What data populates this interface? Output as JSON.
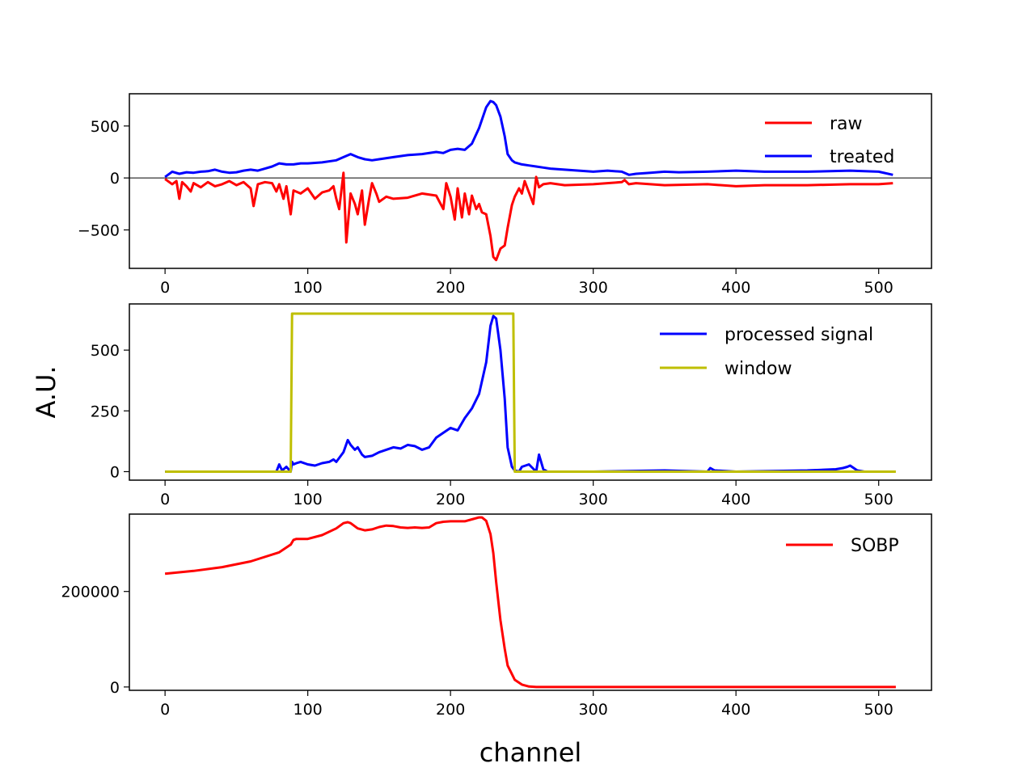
{
  "figure": {
    "ylabel": "A.U.",
    "xlabel": "channel"
  },
  "chart_data": [
    {
      "type": "line",
      "xlim": [
        -25,
        537
      ],
      "ylim": [
        -870,
        810
      ],
      "xticks": [
        0,
        100,
        200,
        300,
        400,
        500
      ],
      "yticks": [
        -500,
        0,
        500
      ],
      "xtick_labels": [
        "0",
        "100",
        "200",
        "300",
        "400",
        "500"
      ],
      "ytick_labels": [
        "−500",
        "0",
        "500"
      ],
      "hline": 0,
      "legend_loc": "upper right",
      "series": [
        {
          "name": "raw",
          "color": "#ff0000",
          "x": [
            0,
            5,
            8,
            10,
            12,
            15,
            18,
            20,
            25,
            30,
            35,
            40,
            45,
            50,
            55,
            60,
            62,
            65,
            70,
            75,
            78,
            80,
            83,
            85,
            88,
            90,
            95,
            100,
            105,
            110,
            115,
            118,
            120,
            122,
            125,
            127,
            130,
            133,
            135,
            138,
            140,
            143,
            145,
            148,
            150,
            155,
            160,
            170,
            180,
            190,
            195,
            197,
            200,
            203,
            205,
            208,
            210,
            213,
            215,
            218,
            220,
            222,
            225,
            228,
            230,
            232,
            235,
            238,
            240,
            243,
            245,
            248,
            250,
            252,
            255,
            258,
            260,
            262,
            265,
            270,
            280,
            300,
            320,
            322,
            325,
            330,
            350,
            380,
            400,
            420,
            450,
            480,
            500,
            510
          ],
          "y": [
            -10,
            -60,
            -30,
            -200,
            -40,
            -80,
            -130,
            -50,
            -90,
            -40,
            -80,
            -60,
            -30,
            -70,
            -40,
            -100,
            -270,
            -60,
            -40,
            -50,
            -130,
            -60,
            -200,
            -80,
            -350,
            -120,
            -150,
            -100,
            -200,
            -140,
            -120,
            -80,
            -200,
            -300,
            50,
            -620,
            -150,
            -250,
            -350,
            -120,
            -450,
            -200,
            -50,
            -150,
            -230,
            -180,
            -200,
            -190,
            -150,
            -170,
            -300,
            -50,
            -180,
            -400,
            -100,
            -380,
            -150,
            -350,
            -170,
            -300,
            -250,
            -330,
            -350,
            -560,
            -760,
            -790,
            -680,
            -650,
            -480,
            -260,
            -180,
            -100,
            -150,
            -30,
            -140,
            -250,
            10,
            -90,
            -60,
            -50,
            -70,
            -60,
            -40,
            -20,
            -60,
            -50,
            -70,
            -60,
            -80,
            -70,
            -70,
            -60,
            -60,
            -50
          ]
        },
        {
          "name": "treated",
          "color": "#0000ff",
          "x": [
            0,
            5,
            10,
            15,
            20,
            25,
            30,
            35,
            40,
            45,
            50,
            55,
            60,
            65,
            70,
            75,
            80,
            85,
            90,
            95,
            100,
            110,
            120,
            125,
            130,
            135,
            140,
            145,
            150,
            160,
            170,
            180,
            190,
            195,
            200,
            205,
            210,
            215,
            220,
            225,
            228,
            230,
            232,
            235,
            238,
            240,
            243,
            245,
            250,
            255,
            260,
            265,
            270,
            280,
            290,
            300,
            310,
            320,
            325,
            330,
            340,
            350,
            360,
            380,
            400,
            420,
            450,
            480,
            500,
            510
          ],
          "y": [
            10,
            60,
            40,
            55,
            50,
            60,
            65,
            80,
            60,
            50,
            55,
            70,
            80,
            70,
            90,
            110,
            140,
            130,
            130,
            140,
            140,
            150,
            170,
            200,
            230,
            200,
            180,
            170,
            180,
            200,
            220,
            230,
            250,
            240,
            270,
            280,
            270,
            330,
            480,
            680,
            740,
            730,
            700,
            590,
            400,
            230,
            170,
            150,
            130,
            120,
            110,
            100,
            90,
            80,
            70,
            60,
            70,
            60,
            30,
            40,
            50,
            60,
            55,
            60,
            70,
            60,
            60,
            70,
            60,
            30
          ]
        }
      ]
    },
    {
      "type": "line",
      "xlim": [
        -25,
        537
      ],
      "ylim": [
        -35,
        690
      ],
      "xticks": [
        0,
        100,
        200,
        300,
        400,
        500
      ],
      "yticks": [
        0,
        250,
        500
      ],
      "xtick_labels": [
        "0",
        "100",
        "200",
        "300",
        "400",
        "500"
      ],
      "ytick_labels": [
        "0",
        "250",
        "500"
      ],
      "legend_loc": "upper right",
      "series": [
        {
          "name": "processed signal",
          "color": "#0000ff",
          "x": [
            0,
            78,
            80,
            82,
            85,
            88,
            89,
            90,
            92,
            95,
            100,
            105,
            110,
            115,
            118,
            120,
            125,
            128,
            130,
            133,
            135,
            138,
            140,
            145,
            150,
            155,
            160,
            165,
            170,
            175,
            180,
            185,
            190,
            195,
            200,
            205,
            210,
            215,
            220,
            225,
            228,
            230,
            232,
            235,
            238,
            240,
            243,
            245,
            248,
            250,
            255,
            260,
            262,
            265,
            268,
            270,
            300,
            350,
            380,
            382,
            385,
            400,
            450,
            470,
            475,
            478,
            480,
            485,
            490,
            500,
            510
          ],
          "y": [
            0,
            0,
            30,
            5,
            20,
            0,
            40,
            30,
            35,
            40,
            30,
            25,
            35,
            40,
            50,
            40,
            80,
            130,
            110,
            90,
            100,
            70,
            60,
            65,
            80,
            90,
            100,
            95,
            110,
            105,
            90,
            100,
            140,
            160,
            180,
            170,
            220,
            260,
            320,
            450,
            600,
            640,
            630,
            500,
            300,
            100,
            20,
            5,
            0,
            20,
            30,
            0,
            70,
            10,
            0,
            0,
            0,
            5,
            0,
            15,
            5,
            0,
            5,
            10,
            15,
            20,
            25,
            5,
            0,
            0,
            0
          ]
        },
        {
          "name": "window",
          "color": "#bfbf00",
          "x": [
            0,
            88,
            89,
            244,
            245,
            512
          ],
          "y": [
            0,
            0,
            650,
            650,
            0,
            0
          ]
        }
      ]
    },
    {
      "type": "line",
      "xlim": [
        -25,
        537
      ],
      "ylim": [
        -7000,
        362000
      ],
      "xticks": [
        0,
        100,
        200,
        300,
        400,
        500
      ],
      "yticks": [
        0,
        200000
      ],
      "xtick_labels": [
        "0",
        "100",
        "200",
        "300",
        "400",
        "500"
      ],
      "ytick_labels": [
        "0",
        "200000"
      ],
      "legend_loc": "upper right",
      "series": [
        {
          "name": "SOBP",
          "color": "#ff0000",
          "x": [
            0,
            20,
            40,
            60,
            80,
            88,
            90,
            92,
            100,
            110,
            120,
            125,
            128,
            130,
            135,
            140,
            145,
            150,
            155,
            160,
            165,
            170,
            175,
            180,
            185,
            190,
            195,
            200,
            210,
            215,
            220,
            222,
            225,
            228,
            230,
            232,
            235,
            238,
            240,
            245,
            250,
            255,
            260,
            300,
            400,
            512
          ],
          "y": [
            237000,
            243000,
            251000,
            263000,
            282000,
            298000,
            308000,
            310000,
            310000,
            318000,
            332000,
            343000,
            345000,
            343000,
            332000,
            328000,
            330000,
            335000,
            338000,
            337000,
            334000,
            333000,
            334000,
            333000,
            334000,
            343000,
            346000,
            347000,
            347000,
            351000,
            355000,
            355000,
            348000,
            320000,
            280000,
            220000,
            140000,
            80000,
            45000,
            15000,
            5000,
            1000,
            0,
            0,
            0,
            0
          ]
        }
      ]
    }
  ]
}
